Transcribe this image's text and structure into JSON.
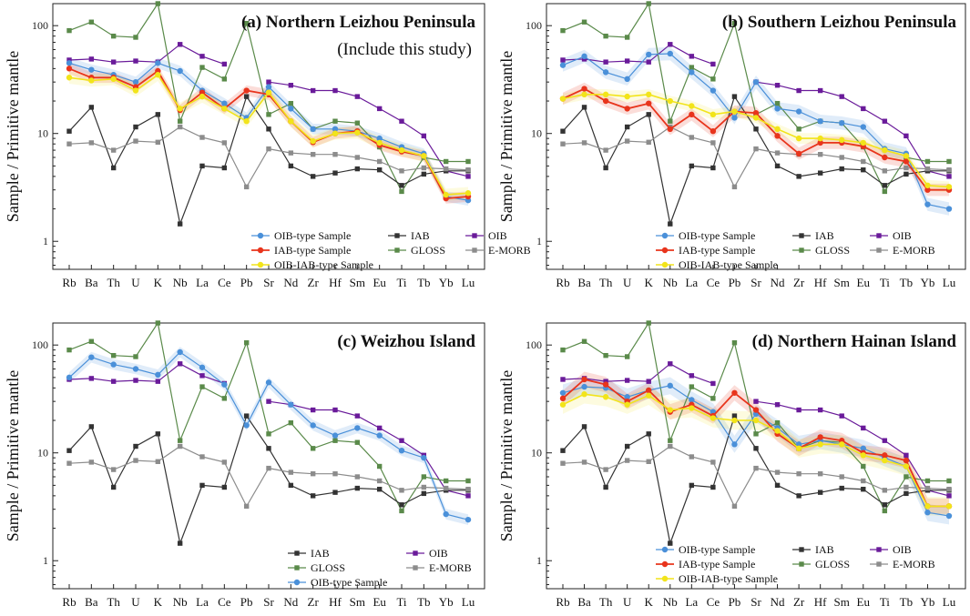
{
  "figure": {
    "elements": [
      "Rb",
      "Ba",
      "Th",
      "U",
      "K",
      "Nb",
      "La",
      "Ce",
      "Pb",
      "Sr",
      "Nd",
      "Zr",
      "Hf",
      "Sm",
      "Eu",
      "Ti",
      "Tb",
      "Yb",
      "Lu"
    ],
    "ylabel": "Sample / Primitive mantle",
    "ytick_labels": [
      "1",
      "10",
      "100"
    ],
    "colors": {
      "OIB-type Sample": "#4a90d9",
      "IAB-type Sample": "#e8341c",
      "OIB-IAB-type Sample": "#f2e41a",
      "IAB": "#333333",
      "OIB": "#6a1b9a",
      "GLOSS": "#5a8a4a",
      "E-MORB": "#8c8c8c"
    }
  },
  "chart_data": [
    {
      "type": "line",
      "title": "(a) Northern Leizhou Peninsula",
      "subtitle": "(Include this study)",
      "ylim": [
        0.55,
        160
      ],
      "legend_items": [
        "OIB-type Sample",
        "IAB",
        "OIB",
        "IAB-type Sample",
        "GLOSS",
        "E-MORB",
        "OIB-IAB-type Sample"
      ],
      "series": [
        {
          "name": "OIB",
          "values": [
            48,
            49,
            46,
            47,
            46,
            67,
            52,
            44,
            null,
            30,
            28,
            25,
            25,
            22,
            17,
            13,
            9.5,
            4.5,
            4.0
          ]
        },
        {
          "name": "GLOSS",
          "values": [
            90,
            108,
            80,
            78,
            160,
            13,
            41,
            32,
            105,
            15,
            19,
            11,
            13,
            12.5,
            7.5,
            2.9,
            6.0,
            5.5,
            5.5
          ]
        },
        {
          "name": "IAB",
          "values": [
            10.5,
            17.5,
            4.8,
            11.5,
            15,
            1.45,
            5.0,
            4.8,
            22,
            11,
            5.0,
            4.0,
            4.3,
            4.7,
            4.6,
            3.3,
            4.2,
            4.5,
            4.5
          ]
        },
        {
          "name": "E-MORB",
          "values": [
            8.0,
            8.2,
            7.0,
            8.5,
            8.3,
            11.5,
            9.2,
            8.2,
            3.2,
            7.2,
            6.6,
            6.4,
            6.4,
            6.0,
            5.5,
            4.5,
            4.8,
            4.7,
            4.6
          ]
        },
        {
          "name": "OIB-type Sample",
          "values": [
            45,
            39,
            35,
            30,
            45,
            38,
            25,
            19,
            14,
            27,
            17,
            11,
            11,
            10.5,
            9.0,
            7.5,
            6.5,
            2.6,
            2.4
          ],
          "band": 0.12
        },
        {
          "name": "IAB-type Sample",
          "values": [
            40,
            33,
            33,
            27,
            38,
            16.5,
            24,
            17,
            25,
            23,
            13,
            8.3,
            10,
            10.5,
            7.8,
            6.8,
            6.2,
            2.5,
            2.6
          ],
          "band": 0.12
        },
        {
          "name": "OIB-IAB-type Sample",
          "values": [
            33,
            31,
            32,
            25,
            35,
            17,
            22,
            17,
            13,
            24,
            13,
            8.5,
            10,
            10.2,
            8.2,
            7.0,
            6.2,
            2.7,
            2.8
          ],
          "band": 0.14
        }
      ]
    },
    {
      "type": "line",
      "title": "(b) Southern Leizhou Peninsula",
      "ylim": [
        0.55,
        160
      ],
      "legend_items": [
        "OIB-type Sample",
        "IAB",
        "OIB",
        "IAB-type Sample",
        "GLOSS",
        "E-MORB",
        "OIB-IAB-type Sample"
      ],
      "series": [
        {
          "name": "OIB",
          "values": [
            48,
            49,
            46,
            47,
            46,
            67,
            52,
            44,
            null,
            30,
            28,
            25,
            25,
            22,
            17,
            13,
            9.5,
            4.5,
            4.0
          ]
        },
        {
          "name": "GLOSS",
          "values": [
            90,
            108,
            80,
            78,
            160,
            13,
            41,
            32,
            105,
            15,
            19,
            11,
            13,
            12.5,
            7.5,
            2.9,
            6.0,
            5.5,
            5.5
          ]
        },
        {
          "name": "IAB",
          "values": [
            10.5,
            17.5,
            4.8,
            11.5,
            15,
            1.45,
            5.0,
            4.8,
            22,
            11,
            5.0,
            4.0,
            4.3,
            4.7,
            4.6,
            3.3,
            4.2,
            4.5,
            4.5
          ]
        },
        {
          "name": "E-MORB",
          "values": [
            8.0,
            8.2,
            7.0,
            8.5,
            8.3,
            11.5,
            9.2,
            8.2,
            3.2,
            7.2,
            6.6,
            6.4,
            6.4,
            6.0,
            5.5,
            4.5,
            4.8,
            4.7,
            4.6
          ]
        },
        {
          "name": "OIB-type Sample",
          "values": [
            43,
            52,
            37,
            32,
            54,
            55,
            37,
            25,
            14,
            30,
            17,
            16,
            13,
            12.5,
            11.5,
            7.2,
            6.5,
            2.2,
            2.0
          ],
          "band": 0.15
        },
        {
          "name": "IAB-type Sample",
          "values": [
            21,
            26,
            20,
            17,
            19,
            11,
            15,
            10.5,
            16,
            15.5,
            9.5,
            6.5,
            8.2,
            8.2,
            7.6,
            6.0,
            5.5,
            3.0,
            3.0
          ],
          "band": 0.14
        },
        {
          "name": "OIB-IAB-type Sample",
          "values": [
            21,
            23,
            23,
            22,
            23,
            20,
            18,
            15,
            16,
            14,
            11,
            9.0,
            9.0,
            8.7,
            8.2,
            7.0,
            6.2,
            3.3,
            3.2
          ],
          "band": 0.12
        }
      ]
    },
    {
      "type": "line",
      "title": "(c) Weizhou Island",
      "ylim": [
        0.55,
        160
      ],
      "legend_items": [
        "IAB",
        "OIB",
        "GLOSS",
        "E-MORB",
        "OIB-type Sample"
      ],
      "series": [
        {
          "name": "OIB",
          "values": [
            48,
            49,
            46,
            47,
            46,
            67,
            52,
            44,
            null,
            30,
            28,
            25,
            25,
            22,
            17,
            13,
            9.5,
            4.5,
            4.0
          ]
        },
        {
          "name": "GLOSS",
          "values": [
            90,
            108,
            80,
            78,
            160,
            13,
            41,
            32,
            105,
            15,
            19,
            11,
            13,
            12.5,
            7.5,
            2.9,
            6.0,
            5.5,
            5.5
          ]
        },
        {
          "name": "IAB",
          "values": [
            10.5,
            17.5,
            4.8,
            11.5,
            15,
            1.45,
            5.0,
            4.8,
            22,
            11,
            5.0,
            4.0,
            4.3,
            4.7,
            4.6,
            3.3,
            4.2,
            4.5,
            4.5
          ]
        },
        {
          "name": "E-MORB",
          "values": [
            8.0,
            8.2,
            7.0,
            8.5,
            8.3,
            11.5,
            9.2,
            8.2,
            3.2,
            7.2,
            6.6,
            6.4,
            6.4,
            6.0,
            5.5,
            4.5,
            4.8,
            4.7,
            4.6
          ]
        },
        {
          "name": "OIB-type Sample",
          "values": [
            50,
            77,
            66,
            60,
            53,
            86,
            62,
            43,
            18,
            45,
            28,
            18,
            14.5,
            17,
            14.5,
            10.5,
            9.0,
            2.7,
            2.4
          ],
          "band": 0.12
        }
      ]
    },
    {
      "type": "line",
      "title": "(d) Northern Hainan Island",
      "ylim": [
        0.55,
        160
      ],
      "legend_items": [
        "OIB-type Sample",
        "IAB",
        "OIB",
        "IAB-type Sample",
        "GLOSS",
        "E-MORB",
        "OIB-IAB-type Sample"
      ],
      "series": [
        {
          "name": "OIB",
          "values": [
            48,
            49,
            46,
            47,
            46,
            67,
            52,
            44,
            null,
            30,
            28,
            25,
            25,
            22,
            17,
            13,
            9.5,
            4.5,
            4.0
          ]
        },
        {
          "name": "GLOSS",
          "values": [
            90,
            108,
            80,
            78,
            160,
            13,
            41,
            32,
            105,
            15,
            19,
            11,
            13,
            12.5,
            7.5,
            2.9,
            6.0,
            5.5,
            5.5
          ]
        },
        {
          "name": "IAB",
          "values": [
            10.5,
            17.5,
            4.8,
            11.5,
            15,
            1.45,
            5.0,
            4.8,
            22,
            11,
            5.0,
            4.0,
            4.3,
            4.7,
            4.6,
            3.3,
            4.2,
            4.5,
            4.5
          ]
        },
        {
          "name": "E-MORB",
          "values": [
            8.0,
            8.2,
            7.0,
            8.5,
            8.3,
            11.5,
            9.2,
            8.2,
            3.2,
            7.2,
            6.6,
            6.4,
            6.4,
            6.0,
            5.5,
            4.5,
            4.8,
            4.7,
            4.6
          ]
        },
        {
          "name": "OIB-type Sample",
          "values": [
            36,
            41,
            40,
            33,
            38,
            42,
            31,
            24,
            12,
            23,
            17,
            12,
            13,
            12,
            11,
            9.0,
            7.5,
            2.8,
            2.6
          ],
          "band": 0.2
        },
        {
          "name": "IAB-type Sample",
          "values": [
            32,
            48,
            43,
            30,
            38,
            24,
            28,
            22,
            36,
            25,
            15,
            11,
            14,
            13,
            10,
            9.5,
            8.5,
            3.2,
            3.2
          ],
          "band": 0.18
        },
        {
          "name": "OIB-IAB-type Sample",
          "values": [
            28,
            35,
            33,
            28,
            34,
            25,
            26,
            21,
            20,
            20,
            16,
            11,
            12,
            12,
            9.5,
            8.5,
            7.5,
            3.2,
            3.2
          ],
          "band": 0.22
        }
      ]
    }
  ]
}
